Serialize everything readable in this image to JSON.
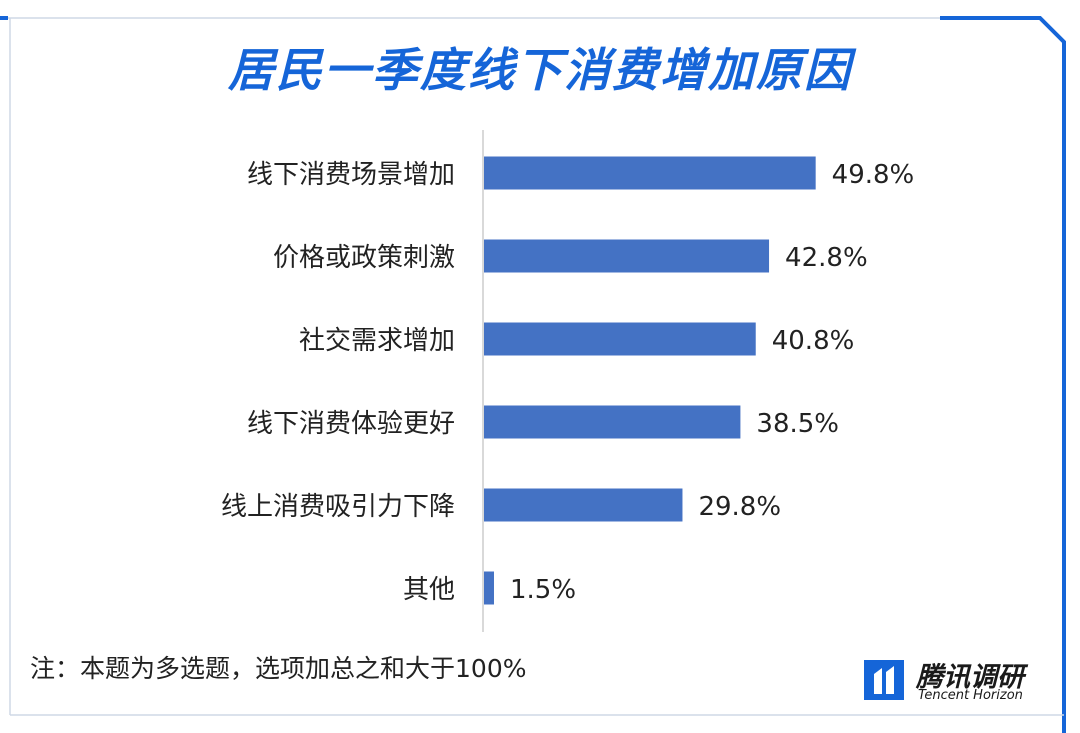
{
  "chart_data": {
    "type": "bar",
    "orientation": "horizontal",
    "title": "居民一季度线下消费增加原因",
    "categories": [
      "线下消费场景增加",
      "价格或政策刺激",
      "社交需求增加",
      "线下消费体验更好",
      "线上消费吸引力下降",
      "其他"
    ],
    "values": [
      49.8,
      42.8,
      40.8,
      38.5,
      29.8,
      1.5
    ],
    "value_labels": [
      "49.8%",
      "42.8%",
      "40.8%",
      "38.5%",
      "29.8%",
      "1.5%"
    ],
    "xlim": [
      0,
      60
    ],
    "grid": false,
    "legend": "none",
    "bar_color": "#4472c4"
  },
  "note": "注：本题为多选题，选项加总之和大于100%",
  "brand": {
    "name": "腾讯调研",
    "subtitle": "Tencent Horizon",
    "color": "#1565d8",
    "frame_color": "#1565d8"
  }
}
